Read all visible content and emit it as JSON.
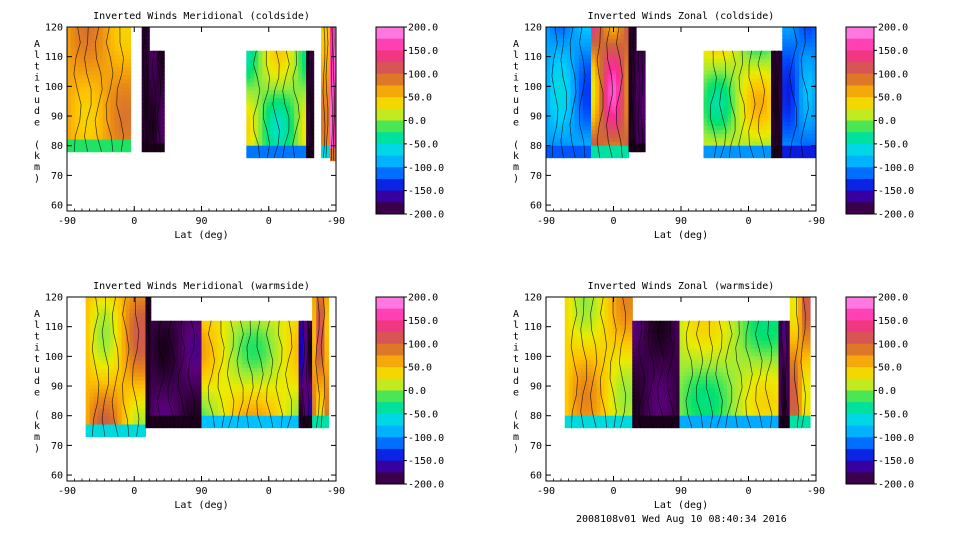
{
  "footer": "2008108v01 Wed Aug 10 08:40:34 2016",
  "chart_data": [
    {
      "type": "heatmap",
      "title": "Inverted Winds Meridional (coldside)",
      "xlabel": "Lat (deg)",
      "ylabel": "Altitude (km)",
      "x_ticks": [
        "-90",
        "0",
        "90",
        "0",
        "-90"
      ],
      "y_ticks": [
        "60",
        "70",
        "80",
        "90",
        "100",
        "110",
        "120"
      ],
      "ylim": [
        58,
        120
      ],
      "colorbar_ticks": [
        "200.0",
        "150.0",
        "100.0",
        "50.0",
        "0.0",
        "-50.0",
        "-100.0",
        "-150.0",
        "-200.0"
      ],
      "colorbar_range": [
        -200,
        200
      ],
      "bands": [
        {
          "x": [
            -90,
            -5
          ],
          "y": [
            78,
            120
          ],
          "base": 40,
          "peak": 90
        },
        {
          "x": [
            10,
            20
          ],
          "y": [
            78,
            120
          ],
          "base": -190,
          "peak": -200
        },
        {
          "x": [
            20,
            40
          ],
          "y": [
            78,
            112
          ],
          "base": -180,
          "peak": -200
        },
        {
          "x": [
            150,
            230
          ],
          "y": [
            76,
            112
          ],
          "base": -50,
          "peak": 45
        },
        {
          "x": [
            230,
            240
          ],
          "y": [
            76,
            112
          ],
          "base": -190,
          "peak": -200
        },
        {
          "x": [
            250,
            262
          ],
          "y": [
            76,
            120
          ],
          "base": 0,
          "peak": 130
        },
        {
          "x": [
            262,
            270
          ],
          "y": [
            75,
            120
          ],
          "base": 150,
          "peak": 185
        }
      ]
    },
    {
      "type": "heatmap",
      "title": "Inverted Winds Zonal (coldside)",
      "xlabel": "Lat (deg)",
      "ylabel": "Altitude (km)",
      "x_ticks": [
        "-90",
        "0",
        "90",
        "0",
        "-90"
      ],
      "y_ticks": [
        "60",
        "70",
        "80",
        "90",
        "100",
        "110",
        "120"
      ],
      "ylim": [
        58,
        120
      ],
      "colorbar_ticks": [
        "200.0",
        "150.0",
        "100.0",
        "50.0",
        "0.0",
        "-50.0",
        "-100.0",
        "-150.0",
        "-200.0"
      ],
      "colorbar_range": [
        -200,
        200
      ],
      "bands": [
        {
          "x": [
            -90,
            -30
          ],
          "y": [
            76,
            120
          ],
          "base": -60,
          "peak": -130
        },
        {
          "x": [
            -30,
            20
          ],
          "y": [
            76,
            120
          ],
          "base": 20,
          "peak": 175
        },
        {
          "x": [
            20,
            30
          ],
          "y": [
            78,
            120
          ],
          "base": -190,
          "peak": -200
        },
        {
          "x": [
            30,
            42
          ],
          "y": [
            78,
            112
          ],
          "base": -170,
          "peak": -200
        },
        {
          "x": [
            120,
            210
          ],
          "y": [
            76,
            112
          ],
          "base": -40,
          "peak": 60
        },
        {
          "x": [
            210,
            225
          ],
          "y": [
            76,
            112
          ],
          "base": -190,
          "peak": -200
        },
        {
          "x": [
            225,
            270
          ],
          "y": [
            76,
            120
          ],
          "base": -80,
          "peak": -140
        }
      ]
    },
    {
      "type": "heatmap",
      "title": "Inverted Winds Meridional (warmside)",
      "xlabel": "Lat (deg)",
      "ylabel": "Altitude (km)",
      "x_ticks": [
        "-90",
        "0",
        "90",
        "0",
        "-90"
      ],
      "y_ticks": [
        "60",
        "70",
        "80",
        "90",
        "100",
        "110",
        "120"
      ],
      "ylim": [
        58,
        120
      ],
      "colorbar_ticks": [
        "200.0",
        "150.0",
        "100.0",
        "50.0",
        "0.0",
        "-50.0",
        "-100.0",
        "-150.0",
        "-200.0"
      ],
      "colorbar_range": [
        -200,
        200
      ],
      "bands": [
        {
          "x": [
            -65,
            15
          ],
          "y": [
            73,
            120
          ],
          "base": 0,
          "peak": 110
        },
        {
          "x": [
            15,
            22
          ],
          "y": [
            76,
            120
          ],
          "base": -190,
          "peak": -200
        },
        {
          "x": [
            22,
            90
          ],
          "y": [
            76,
            112
          ],
          "base": -170,
          "peak": -200
        },
        {
          "x": [
            90,
            220
          ],
          "y": [
            76,
            112
          ],
          "base": -20,
          "peak": 70
        },
        {
          "x": [
            220,
            238
          ],
          "y": [
            76,
            112
          ],
          "base": -150,
          "peak": -200
        },
        {
          "x": [
            238,
            260
          ],
          "y": [
            76,
            120
          ],
          "base": 20,
          "peak": 120
        }
      ]
    },
    {
      "type": "heatmap",
      "title": "Inverted Winds Zonal (warmside)",
      "xlabel": "Lat (deg)",
      "ylabel": "Altitude (km)",
      "x_ticks": [
        "-90",
        "0",
        "90",
        "0",
        "-90"
      ],
      "y_ticks": [
        "60",
        "70",
        "80",
        "90",
        "100",
        "110",
        "120"
      ],
      "ylim": [
        58,
        120
      ],
      "colorbar_ticks": [
        "200.0",
        "150.0",
        "100.0",
        "50.0",
        "0.0",
        "-50.0",
        "-100.0",
        "-150.0",
        "-200.0"
      ],
      "colorbar_range": [
        -200,
        200
      ],
      "bands": [
        {
          "x": [
            -65,
            25
          ],
          "y": [
            76,
            120
          ],
          "base": 0,
          "peak": 80
        },
        {
          "x": [
            25,
            88
          ],
          "y": [
            76,
            112
          ],
          "base": -175,
          "peak": -200
        },
        {
          "x": [
            88,
            220
          ],
          "y": [
            76,
            112
          ],
          "base": -30,
          "peak": 40
        },
        {
          "x": [
            220,
            235
          ],
          "y": [
            76,
            112
          ],
          "base": -170,
          "peak": -200
        },
        {
          "x": [
            235,
            262
          ],
          "y": [
            76,
            120
          ],
          "base": 20,
          "peak": 110
        }
      ]
    }
  ]
}
